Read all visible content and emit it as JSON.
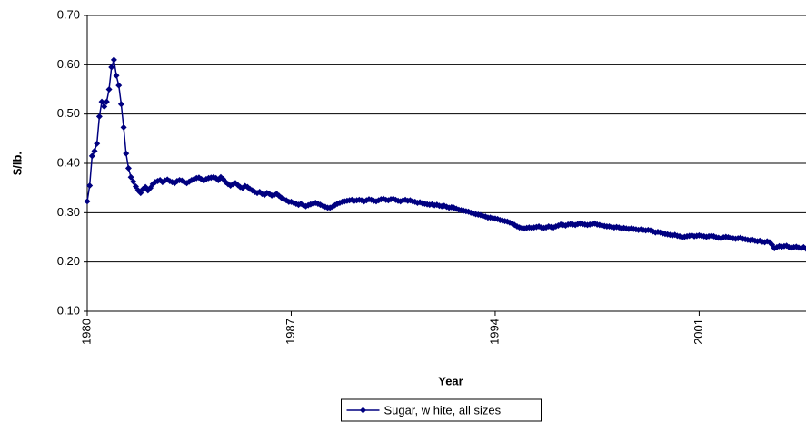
{
  "chart_data": {
    "type": "line",
    "x_label": "Year",
    "y_label": "$/lb.",
    "categories": [
      "1980",
      null,
      null,
      null,
      null,
      null,
      null,
      null,
      null,
      null,
      null,
      null,
      null,
      null,
      null,
      null,
      null,
      null,
      null,
      null,
      null,
      null,
      null,
      null,
      null,
      null,
      null,
      null,
      null,
      null,
      null,
      null,
      null,
      null,
      null,
      null,
      null,
      null,
      null,
      null,
      null,
      null,
      null,
      null,
      null,
      null,
      null,
      null,
      null,
      null,
      null,
      null,
      null,
      null,
      null,
      null,
      null,
      null,
      null,
      null,
      null,
      null,
      null,
      null,
      null,
      null,
      null,
      null,
      null,
      null,
      null,
      null,
      null,
      null,
      null,
      null,
      null,
      null,
      null,
      null,
      null,
      null,
      null,
      null,
      "1987",
      null,
      null,
      null,
      null,
      null,
      null,
      null,
      null,
      null,
      null,
      null,
      null,
      null,
      null,
      null,
      null,
      null,
      null,
      null,
      null,
      null,
      null,
      null,
      null,
      null,
      null,
      null,
      null,
      null,
      null,
      null,
      null,
      null,
      null,
      null,
      null,
      null,
      null,
      null,
      null,
      null,
      null,
      null,
      null,
      null,
      null,
      null,
      null,
      null,
      null,
      null,
      null,
      null,
      null,
      null,
      null,
      null,
      null,
      null,
      null,
      null,
      null,
      null,
      null,
      null,
      null,
      null,
      null,
      null,
      null,
      null,
      null,
      null,
      null,
      null,
      null,
      null,
      null,
      null,
      null,
      null,
      null,
      null,
      "1994",
      null,
      null,
      null,
      null,
      null,
      null,
      null,
      null,
      null,
      null,
      null,
      null,
      null,
      null,
      null,
      null,
      null,
      null,
      null,
      null,
      null,
      null,
      null,
      null,
      null,
      null,
      null,
      null,
      null,
      null,
      null,
      null,
      null,
      null,
      null,
      null,
      null,
      null,
      null,
      null,
      null,
      null,
      null,
      null,
      null,
      null,
      null,
      null,
      null,
      null,
      null,
      null,
      null,
      null,
      null,
      null,
      null,
      null,
      null,
      null,
      null,
      null,
      null,
      null,
      null,
      null,
      null,
      null,
      null,
      null,
      null,
      null,
      null,
      null,
      null,
      null,
      null,
      null,
      null,
      null,
      null,
      null,
      null,
      "2001",
      null,
      null,
      null,
      null,
      null,
      null,
      null,
      null,
      null,
      null,
      null,
      null,
      null,
      null,
      null,
      null,
      null,
      null,
      null,
      null,
      null,
      null,
      null,
      null,
      null,
      null,
      null,
      null,
      null,
      null,
      null,
      null,
      null,
      null,
      null,
      null,
      null,
      null,
      null,
      null,
      null,
      null,
      null,
      null
    ],
    "series": [
      {
        "name": "Sugar, w hite, all sizes",
        "color": "#000080",
        "values": [
          0.323,
          0.355,
          0.415,
          0.425,
          0.44,
          0.495,
          0.525,
          0.515,
          0.525,
          0.55,
          0.595,
          0.61,
          0.578,
          0.558,
          0.52,
          0.473,
          0.42,
          0.39,
          0.372,
          0.363,
          0.353,
          0.345,
          0.34,
          0.348,
          0.352,
          0.345,
          0.35,
          0.358,
          0.362,
          0.364,
          0.366,
          0.362,
          0.365,
          0.367,
          0.364,
          0.362,
          0.36,
          0.364,
          0.366,
          0.365,
          0.362,
          0.36,
          0.363,
          0.366,
          0.368,
          0.37,
          0.371,
          0.368,
          0.365,
          0.368,
          0.37,
          0.371,
          0.372,
          0.37,
          0.366,
          0.372,
          0.368,
          0.362,
          0.358,
          0.355,
          0.358,
          0.36,
          0.356,
          0.352,
          0.35,
          0.354,
          0.352,
          0.348,
          0.345,
          0.342,
          0.34,
          0.342,
          0.338,
          0.336,
          0.34,
          0.338,
          0.335,
          0.336,
          0.338,
          0.334,
          0.33,
          0.327,
          0.325,
          0.322,
          0.322,
          0.32,
          0.318,
          0.316,
          0.318,
          0.315,
          0.313,
          0.315,
          0.317,
          0.318,
          0.32,
          0.318,
          0.316,
          0.314,
          0.312,
          0.31,
          0.31,
          0.312,
          0.315,
          0.318,
          0.32,
          0.322,
          0.323,
          0.324,
          0.325,
          0.326,
          0.324,
          0.325,
          0.326,
          0.325,
          0.323,
          0.325,
          0.327,
          0.326,
          0.324,
          0.323,
          0.325,
          0.327,
          0.328,
          0.326,
          0.325,
          0.327,
          0.328,
          0.326,
          0.324,
          0.323,
          0.325,
          0.326,
          0.324,
          0.325,
          0.323,
          0.322,
          0.32,
          0.321,
          0.319,
          0.318,
          0.317,
          0.316,
          0.317,
          0.315,
          0.316,
          0.314,
          0.313,
          0.314,
          0.312,
          0.31,
          0.311,
          0.31,
          0.308,
          0.306,
          0.305,
          0.304,
          0.303,
          0.302,
          0.3,
          0.298,
          0.297,
          0.296,
          0.295,
          0.293,
          0.292,
          0.29,
          0.29,
          0.289,
          0.288,
          0.287,
          0.285,
          0.284,
          0.283,
          0.282,
          0.28,
          0.278,
          0.275,
          0.272,
          0.27,
          0.269,
          0.268,
          0.269,
          0.27,
          0.269,
          0.27,
          0.271,
          0.272,
          0.27,
          0.269,
          0.27,
          0.272,
          0.271,
          0.27,
          0.272,
          0.274,
          0.276,
          0.275,
          0.274,
          0.276,
          0.277,
          0.276,
          0.275,
          0.277,
          0.278,
          0.277,
          0.276,
          0.275,
          0.276,
          0.277,
          0.278,
          0.276,
          0.275,
          0.274,
          0.273,
          0.272,
          0.272,
          0.271,
          0.27,
          0.271,
          0.27,
          0.268,
          0.269,
          0.268,
          0.267,
          0.268,
          0.267,
          0.266,
          0.265,
          0.266,
          0.265,
          0.264,
          0.265,
          0.264,
          0.262,
          0.26,
          0.261,
          0.26,
          0.258,
          0.257,
          0.256,
          0.255,
          0.254,
          0.255,
          0.253,
          0.252,
          0.25,
          0.251,
          0.252,
          0.253,
          0.254,
          0.252,
          0.253,
          0.254,
          0.253,
          0.252,
          0.251,
          0.252,
          0.253,
          0.252,
          0.25,
          0.249,
          0.248,
          0.25,
          0.251,
          0.25,
          0.249,
          0.248,
          0.247,
          0.248,
          0.249,
          0.247,
          0.246,
          0.245,
          0.244,
          0.245,
          0.243,
          0.242,
          0.243,
          0.241,
          0.24,
          0.242,
          0.24,
          0.235,
          0.228,
          0.23,
          0.232,
          0.231,
          0.232,
          0.233,
          0.23,
          0.229,
          0.23,
          0.231,
          0.229,
          0.228,
          0.23,
          0.227
        ]
      }
    ],
    "ylim": [
      0.1,
      0.7
    ],
    "yticks": [
      {
        "value": 0.1,
        "label": "0.10"
      },
      {
        "value": 0.2,
        "label": "0.20"
      },
      {
        "value": 0.3,
        "label": "0.30"
      },
      {
        "value": 0.4,
        "label": "0.40"
      },
      {
        "value": 0.5,
        "label": "0.50"
      },
      {
        "value": 0.6,
        "label": "0.60"
      },
      {
        "value": 0.7,
        "label": "0.70"
      }
    ],
    "grid": true,
    "legend": "bottom"
  }
}
